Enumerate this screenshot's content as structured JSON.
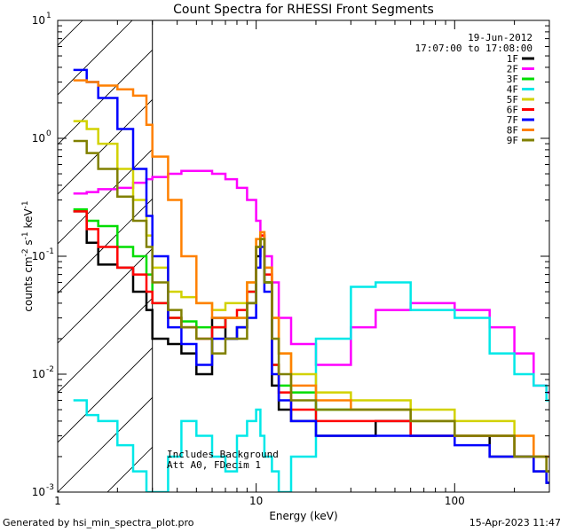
{
  "chart_data": {
    "type": "line",
    "title": "Count Spectra for RHESSI Front Segments",
    "xlabel": "Energy (keV)",
    "ylabel": "counts cm^-2 s^-1 keV^-1",
    "xscale": "log",
    "yscale": "log",
    "xlim": [
      1,
      300
    ],
    "ylim": [
      0.001,
      10
    ],
    "x_ticks": [
      {
        "v": 1,
        "label": "1"
      },
      {
        "v": 10,
        "label": "10"
      },
      {
        "v": 100,
        "label": "100"
      }
    ],
    "y_ticks": [
      {
        "v": 0.001,
        "base": "10",
        "exp": "-3"
      },
      {
        "v": 0.01,
        "base": "10",
        "exp": "-2"
      },
      {
        "v": 0.1,
        "base": "10",
        "exp": "-1"
      },
      {
        "v": 1,
        "base": "10",
        "exp": "0"
      },
      {
        "v": 10,
        "base": "10",
        "exp": "1"
      }
    ],
    "date": "19-Jun-2012",
    "time_range": "17:07:00 to 17:08:00",
    "annotation_lines": [
      "Includes Background",
      "Att A0, FDecim 1"
    ],
    "hatched_region": [
      1,
      3
    ],
    "legend_location": "top-right",
    "series": [
      {
        "name": "1F",
        "color": "#000000",
        "x": [
          1.2,
          1.4,
          1.6,
          2.0,
          2.4,
          2.8,
          3.0,
          3.6,
          4.2,
          5.0,
          6.0,
          7.0,
          8.0,
          9.0,
          10.0,
          10.5,
          11.0,
          12.0,
          13.0,
          15.0,
          20.0,
          30.0,
          40.0,
          60.0,
          100.0,
          150.0,
          200.0,
          250.0,
          290.0
        ],
        "y": [
          0.24,
          0.13,
          0.085,
          0.08,
          0.05,
          0.035,
          0.02,
          0.018,
          0.015,
          0.01,
          0.03,
          0.02,
          0.025,
          0.04,
          0.1,
          0.14,
          0.06,
          0.008,
          0.005,
          0.004,
          0.003,
          0.003,
          0.004,
          0.003,
          0.003,
          0.002,
          0.002,
          0.0015,
          0.0012
        ]
      },
      {
        "name": "2F",
        "color": "#ff00ff",
        "x": [
          1.2,
          1.4,
          1.6,
          2.0,
          2.4,
          2.8,
          3.0,
          3.6,
          4.2,
          5.0,
          6.0,
          7.0,
          8.0,
          9.0,
          10.0,
          10.5,
          11.0,
          12.0,
          13.0,
          15.0,
          20.0,
          30.0,
          40.0,
          60.0,
          100.0,
          150.0,
          200.0,
          250.0,
          290.0
        ],
        "y": [
          0.34,
          0.35,
          0.37,
          0.38,
          0.42,
          0.45,
          0.47,
          0.5,
          0.53,
          0.53,
          0.5,
          0.45,
          0.38,
          0.3,
          0.2,
          0.15,
          0.1,
          0.06,
          0.03,
          0.018,
          0.012,
          0.025,
          0.035,
          0.04,
          0.035,
          0.025,
          0.015,
          0.008,
          0.007
        ]
      },
      {
        "name": "3F",
        "color": "#00dd00",
        "x": [
          1.2,
          1.4,
          1.6,
          2.0,
          2.4,
          2.8,
          3.0,
          3.6,
          4.2,
          5.0,
          6.0,
          7.0,
          8.0,
          9.0,
          10.0,
          10.5,
          11.0,
          12.0,
          13.0,
          15.0,
          20.0,
          30.0,
          40.0,
          60.0,
          100.0,
          150.0,
          200.0,
          250.0,
          290.0
        ],
        "y": [
          0.25,
          0.2,
          0.18,
          0.12,
          0.1,
          0.07,
          0.04,
          0.03,
          0.028,
          0.025,
          0.025,
          0.03,
          0.03,
          0.05,
          0.12,
          0.14,
          0.06,
          0.012,
          0.008,
          0.007,
          0.005,
          0.005,
          0.005,
          0.004,
          0.003,
          0.003,
          0.002,
          0.002,
          0.0015
        ]
      },
      {
        "name": "4F",
        "color": "#00e8e8",
        "x": [
          1.2,
          1.4,
          1.6,
          2.0,
          2.4,
          2.8,
          3.0,
          3.6,
          4.2,
          5.0,
          6.0,
          7.0,
          8.0,
          9.0,
          10.0,
          10.5,
          11.0,
          12.0,
          13.0,
          15.0,
          20.0,
          30.0,
          40.0,
          60.0,
          100.0,
          150.0,
          200.0,
          250.0,
          290.0
        ],
        "y": [
          0.006,
          0.0045,
          0.004,
          0.0025,
          0.0015,
          0.001,
          0.001,
          0.002,
          0.004,
          0.003,
          0.002,
          0.0015,
          0.003,
          0.004,
          0.005,
          0.003,
          0.002,
          0.0015,
          0.001,
          0.002,
          0.02,
          0.055,
          0.06,
          0.035,
          0.03,
          0.015,
          0.01,
          0.008,
          0.006
        ]
      },
      {
        "name": "5F",
        "color": "#d2d200",
        "x": [
          1.2,
          1.4,
          1.6,
          2.0,
          2.4,
          2.8,
          3.0,
          3.6,
          4.2,
          5.0,
          6.0,
          7.0,
          8.0,
          9.0,
          10.0,
          10.5,
          11.0,
          12.0,
          13.0,
          15.0,
          20.0,
          30.0,
          40.0,
          60.0,
          100.0,
          150.0,
          200.0,
          250.0,
          290.0
        ],
        "y": [
          1.4,
          1.2,
          0.9,
          0.55,
          0.3,
          0.15,
          0.08,
          0.05,
          0.045,
          0.04,
          0.035,
          0.04,
          0.04,
          0.06,
          0.14,
          0.16,
          0.08,
          0.03,
          0.015,
          0.01,
          0.007,
          0.006,
          0.006,
          0.005,
          0.004,
          0.004,
          0.003,
          0.002,
          0.002
        ]
      },
      {
        "name": "6F",
        "color": "#ff0000",
        "x": [
          1.2,
          1.4,
          1.6,
          2.0,
          2.4,
          2.8,
          3.0,
          3.6,
          4.2,
          5.0,
          6.0,
          7.0,
          8.0,
          9.0,
          10.0,
          10.5,
          11.0,
          12.0,
          13.0,
          15.0,
          20.0,
          30.0,
          40.0,
          60.0,
          100.0,
          150.0,
          200.0,
          250.0,
          290.0
        ],
        "y": [
          0.24,
          0.17,
          0.12,
          0.08,
          0.07,
          0.05,
          0.04,
          0.03,
          0.025,
          0.02,
          0.025,
          0.03,
          0.035,
          0.05,
          0.12,
          0.15,
          0.07,
          0.012,
          0.007,
          0.005,
          0.004,
          0.004,
          0.004,
          0.003,
          0.003,
          0.003,
          0.002,
          0.002,
          0.0015
        ]
      },
      {
        "name": "7F",
        "color": "#0000ff",
        "x": [
          1.2,
          1.4,
          1.6,
          2.0,
          2.4,
          2.8,
          3.0,
          3.6,
          4.2,
          5.0,
          6.0,
          7.0,
          8.0,
          9.0,
          10.0,
          10.5,
          11.0,
          12.0,
          13.0,
          15.0,
          20.0,
          30.0,
          40.0,
          60.0,
          100.0,
          150.0,
          200.0,
          250.0,
          290.0
        ],
        "y": [
          3.8,
          3.0,
          2.2,
          1.2,
          0.55,
          0.22,
          0.1,
          0.025,
          0.018,
          0.012,
          0.02,
          0.02,
          0.025,
          0.03,
          0.08,
          0.12,
          0.05,
          0.01,
          0.006,
          0.004,
          0.003,
          0.003,
          0.003,
          0.003,
          0.0025,
          0.002,
          0.002,
          0.0015,
          0.0012
        ]
      },
      {
        "name": "8F",
        "color": "#ff8000",
        "x": [
          1.2,
          1.4,
          1.6,
          2.0,
          2.4,
          2.8,
          3.0,
          3.6,
          4.2,
          5.0,
          6.0,
          7.0,
          8.0,
          9.0,
          10.0,
          10.5,
          11.0,
          12.0,
          13.0,
          15.0,
          20.0,
          30.0,
          40.0,
          60.0,
          100.0,
          150.0,
          200.0,
          250.0,
          290.0
        ],
        "y": [
          3.1,
          3.0,
          2.8,
          2.6,
          2.3,
          1.3,
          0.7,
          0.3,
          0.1,
          0.04,
          0.03,
          0.03,
          0.03,
          0.06,
          0.14,
          0.16,
          0.08,
          0.03,
          0.015,
          0.008,
          0.006,
          0.005,
          0.005,
          0.004,
          0.003,
          0.003,
          0.003,
          0.002,
          0.002
        ]
      },
      {
        "name": "9F",
        "color": "#808000",
        "x": [
          1.2,
          1.4,
          1.6,
          2.0,
          2.4,
          2.8,
          3.0,
          3.6,
          4.2,
          5.0,
          6.0,
          7.0,
          8.0,
          9.0,
          10.0,
          10.5,
          11.0,
          12.0,
          13.0,
          15.0,
          20.0,
          30.0,
          40.0,
          60.0,
          100.0,
          150.0,
          200.0,
          250.0,
          290.0
        ],
        "y": [
          0.95,
          0.75,
          0.55,
          0.32,
          0.2,
          0.12,
          0.06,
          0.035,
          0.025,
          0.02,
          0.015,
          0.02,
          0.02,
          0.04,
          0.12,
          0.14,
          0.06,
          0.02,
          0.01,
          0.006,
          0.005,
          0.005,
          0.005,
          0.004,
          0.003,
          0.003,
          0.002,
          0.002,
          0.0015
        ]
      }
    ]
  },
  "footer": {
    "generator": "Generated by hsi_min_spectra_plot.pro",
    "timestamp": "15-Apr-2023 11:47"
  }
}
